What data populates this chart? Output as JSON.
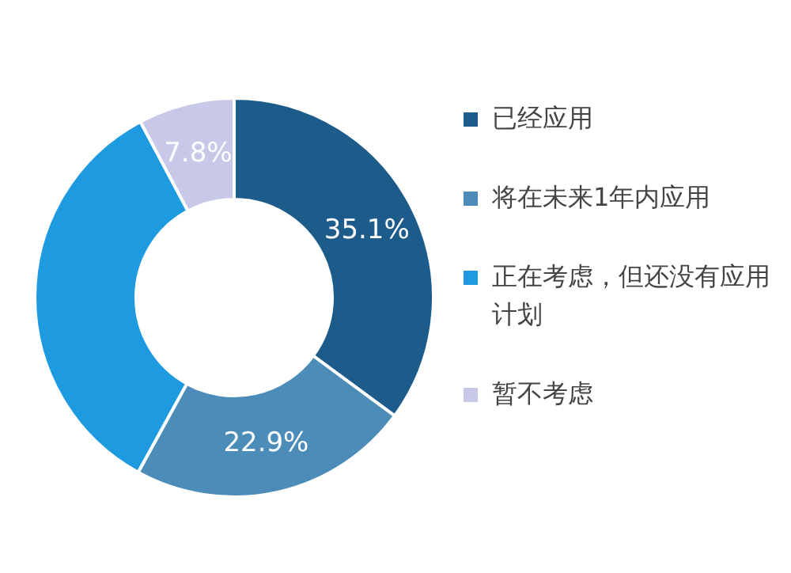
{
  "chart_data": {
    "type": "donut",
    "categories": [
      "已经应用",
      "将在未来1年内应用",
      "正在考虑，但还没有应用计划",
      "暂不考虑"
    ],
    "values": [
      35.1,
      22.9,
      34.2,
      7.8
    ],
    "colors": [
      "#1d5c8a",
      "#4b8db8",
      "#1e9be0",
      "#c8c8e8"
    ],
    "value_labels": [
      "35.1%",
      "22.9%",
      null,
      "7.8%"
    ],
    "legend": "right"
  }
}
